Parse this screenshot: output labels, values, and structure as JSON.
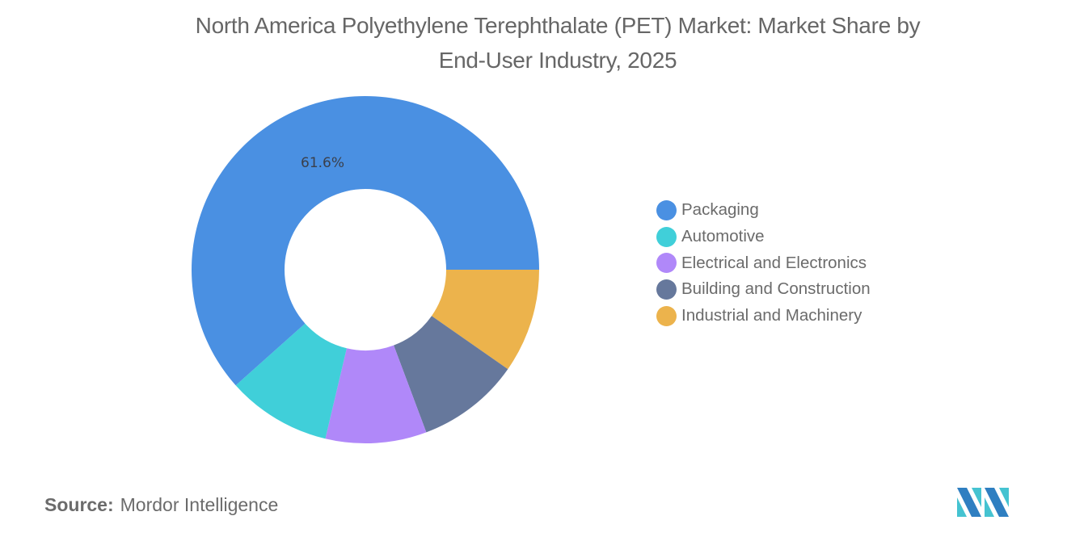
{
  "header": {
    "title_line1": "North America Polyethylene Terephthalate (PET) Market: Market Share by",
    "title_line2": "End-User Industry, 2025"
  },
  "chart_data": {
    "type": "pie",
    "variant": "donut",
    "title": "North America Polyethylene Terephthalate (PET) Market: Market Share by End-User Industry, 2025",
    "categories": [
      "Packaging",
      "Automotive",
      "Electrical and Electronics",
      "Building and Construction",
      "Industrial and Machinery"
    ],
    "values": [
      61.6,
      9.7,
      9.4,
      9.6,
      9.7
    ],
    "unit": "%",
    "colors": [
      "#4a90e2",
      "#40cfd9",
      "#b088f9",
      "#66789c",
      "#ecb34c"
    ],
    "data_labels": [
      {
        "category": "Packaging",
        "text": "61.6%"
      }
    ],
    "legend_position": "right",
    "grid": false
  },
  "legend": {
    "items": [
      {
        "label": "Packaging",
        "color": "#4a90e2"
      },
      {
        "label": "Automotive",
        "color": "#40cfd9"
      },
      {
        "label": "Electrical and Electronics",
        "color": "#b088f9"
      },
      {
        "label": "Building and Construction",
        "color": "#66789c"
      },
      {
        "label": "Industrial and Machinery",
        "color": "#ecb34c"
      }
    ]
  },
  "labels": {
    "packaging_pct": "61.6%"
  },
  "footer": {
    "source_label": "Source:",
    "source_value": "Mordor Intelligence",
    "logo": "mordor-intelligence-logo"
  }
}
